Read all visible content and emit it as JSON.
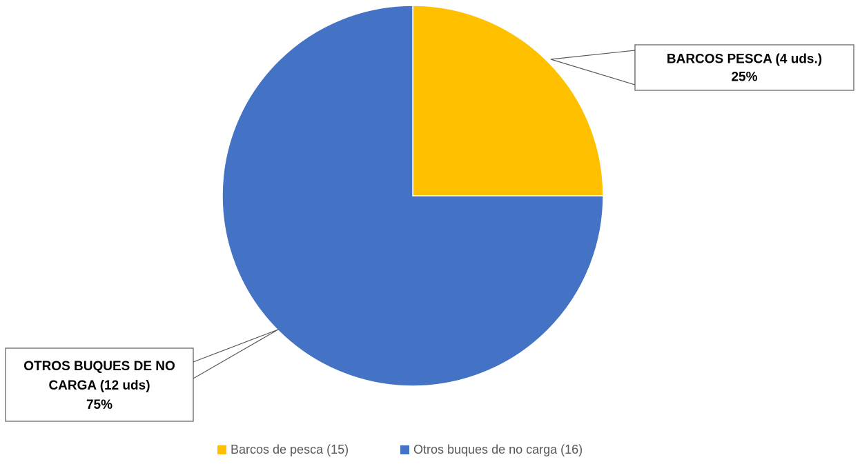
{
  "chart_data": {
    "type": "pie",
    "title": "",
    "slices": [
      {
        "name": "Barcos de pesca (15)",
        "value": 25,
        "color": "#FFC000",
        "label_lines": [
          "BARCOS PESCA (4 uds.)",
          "25%"
        ]
      },
      {
        "name": "Otros buques de no carga (16)",
        "value": 75,
        "color": "#4472C4",
        "label_lines": [
          "OTROS BUQUES DE NO",
          "CARGA (12 uds)",
          "75%"
        ]
      }
    ],
    "legend_position": "bottom"
  }
}
